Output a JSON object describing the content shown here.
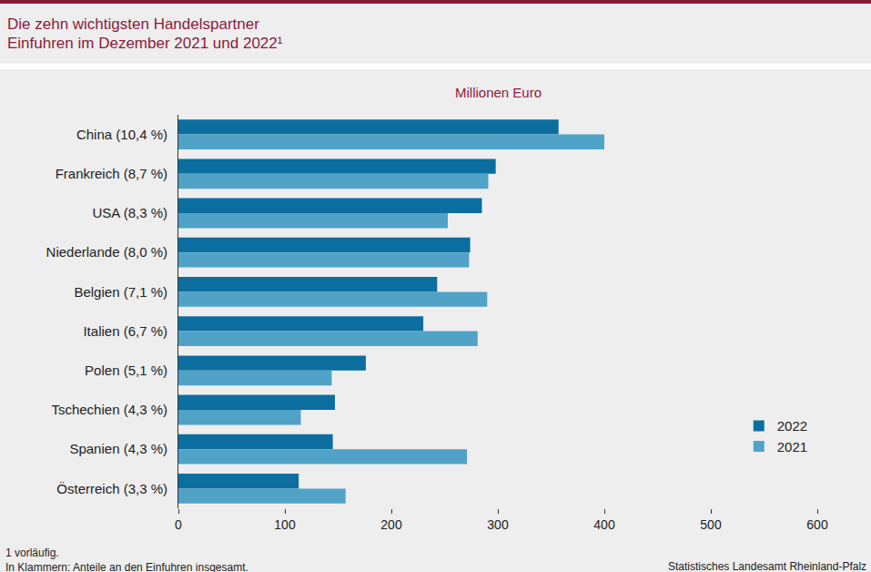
{
  "chart_data": {
    "type": "bar",
    "orientation": "horizontal",
    "title": "Die zehn wichtigsten Handelspartner\nEinfuhren im Dezember 2021 und 2022¹",
    "xlabel": "Millionen Euro",
    "categories": [
      "China (10,4 %)",
      "Frankreich (8,7 %)",
      "USA (8,3 %)",
      "Niederlande (8,0 %)",
      "Belgien (7,1 %)",
      "Italien (6,7 %)",
      "Polen (5,1 %)",
      "Tschechien (4,3 %)",
      "Spanien (4,3 %)",
      "Österreich (3,3 %)"
    ],
    "series": [
      {
        "name": "2022",
        "color": "#0b6e9f",
        "values": [
          357,
          298,
          285,
          274,
          243,
          230,
          176,
          147,
          145,
          113
        ]
      },
      {
        "name": "2021",
        "color": "#51a2c7",
        "values": [
          400,
          291,
          253,
          273,
          290,
          281,
          144,
          115,
          271,
          157
        ]
      }
    ],
    "xlim": [
      0,
      600
    ],
    "xticks": [
      0,
      100,
      200,
      300,
      400,
      500,
      600
    ],
    "grid": false,
    "legend": "bottom right",
    "notes": [
      "1 vorläufig.",
      "In Klammern: Anteile an den Einfuhren insgesamt."
    ],
    "source": "Statistisches Landesamt Rheinland-Pfalz"
  }
}
